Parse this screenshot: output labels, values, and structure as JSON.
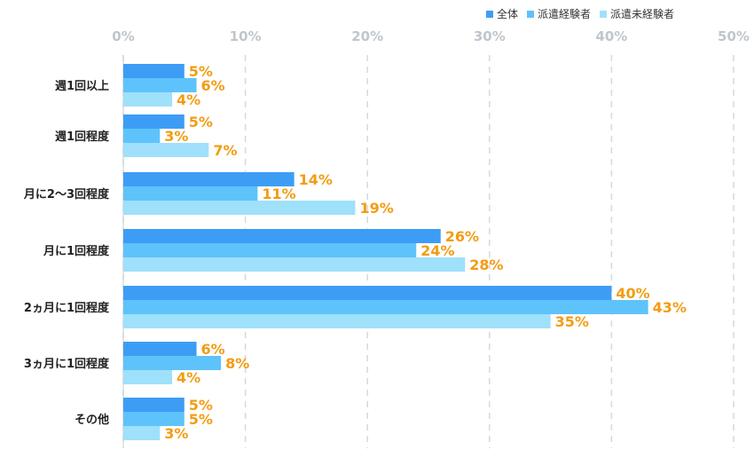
{
  "chart_data": {
    "type": "bar",
    "orientation": "horizontal",
    "categories": [
      "週1回以上",
      "週1回程度",
      "月に2〜3回程度",
      "月に1回程度",
      "2ヵ月に1回程度",
      "3ヵ月に1回程度",
      "その他"
    ],
    "series": [
      {
        "name": "全体",
        "color": "#3d9df5",
        "values": [
          5,
          5,
          14,
          26,
          40,
          6,
          5
        ],
        "labels": [
          "5%",
          "5%",
          "14%",
          "26%",
          "40%",
          "6%",
          "5%"
        ]
      },
      {
        "name": "派遣経験者",
        "color": "#5ec3fa",
        "values": [
          6,
          3,
          11,
          24,
          43,
          8,
          5
        ],
        "labels": [
          "6%",
          "3%",
          "11%",
          "24%",
          "43%",
          "8%",
          "5%"
        ]
      },
      {
        "name": "派遣未経験者",
        "color": "#9fe0fb",
        "values": [
          4,
          7,
          19,
          28,
          35,
          4,
          3
        ],
        "labels": [
          "4%",
          "7%",
          "19%",
          "28%",
          "35%",
          "4%",
          "3%"
        ]
      }
    ],
    "xlim": [
      0,
      50
    ],
    "ticks": [
      0,
      10,
      20,
      30,
      40,
      50
    ],
    "tick_labels": [
      "0%",
      "10%",
      "20%",
      "30%",
      "40%",
      "50%"
    ],
    "grid": true,
    "legend_position": "top-right",
    "label_color": "#f39c12",
    "axis_label_color": "#c0c6cc"
  }
}
